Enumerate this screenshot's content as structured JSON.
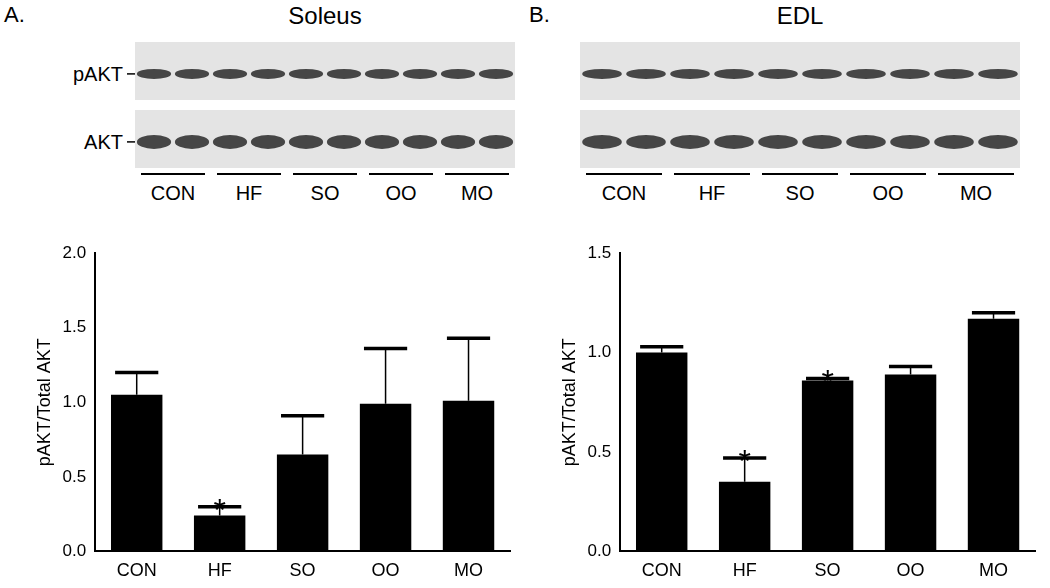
{
  "chart_data": [
    {
      "type": "bar",
      "panel_label": "A.",
      "title": "Soleus",
      "blot_labels": [
        "pAKT",
        "AKT"
      ],
      "categories": [
        "CON",
        "HF",
        "SO",
        "OO",
        "MO"
      ],
      "values": [
        1.05,
        0.24,
        0.65,
        0.99,
        1.01
      ],
      "errors": [
        0.15,
        0.06,
        0.26,
        0.37,
        0.42
      ],
      "color": "#000000",
      "ylabel": "pAKT/Total AKT",
      "ylim": [
        0,
        2
      ],
      "yticks": [
        {
          "value": 0,
          "label": "0.0"
        },
        0.5,
        {
          "value": 1,
          "label": "1.0"
        },
        1.5,
        {
          "value": 2,
          "label": "2.0"
        }
      ],
      "grid": false,
      "annotations": [
        {
          "category": "HF",
          "text": "*"
        }
      ]
    },
    {
      "type": "bar",
      "panel_label": "B.",
      "title": "EDL",
      "categories": [
        "CON",
        "HF",
        "SO",
        "OO",
        "MO"
      ],
      "values": [
        1.0,
        0.35,
        0.86,
        0.89,
        1.17
      ],
      "errors": [
        0.03,
        0.12,
        0.01,
        0.04,
        0.03
      ],
      "color": "#000000",
      "ylabel": "pAKT/Total AKT",
      "ylim": [
        0,
        1.5
      ],
      "yticks": [
        {
          "value": 0,
          "label": "0.0"
        },
        0.5,
        {
          "value": 1,
          "label": "1.0"
        },
        1.5
      ],
      "grid": false,
      "annotations": [
        {
          "category": "HF",
          "text": "*"
        },
        {
          "category": "SO",
          "text": "*"
        }
      ]
    }
  ]
}
